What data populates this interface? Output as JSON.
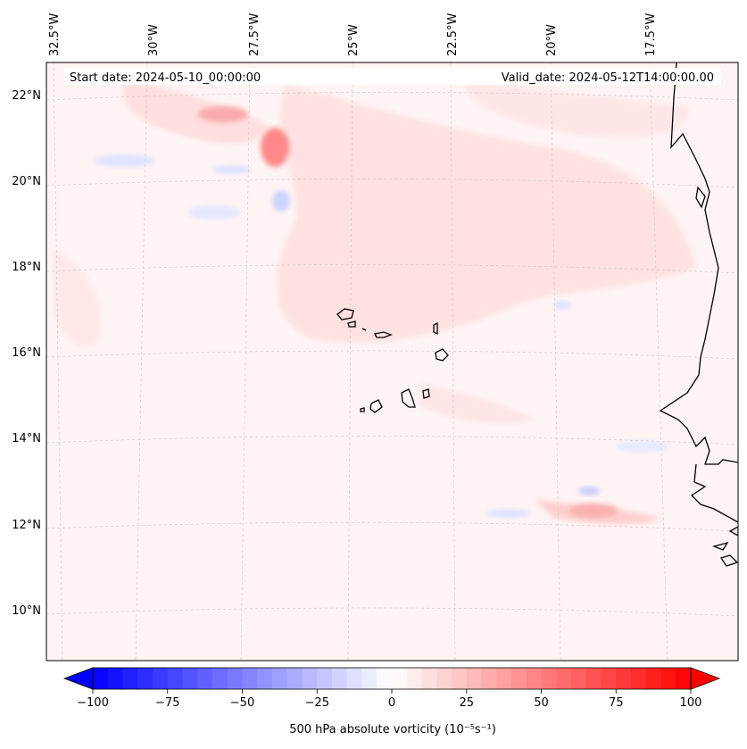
{
  "header": {
    "start_date": "Start date: 2024-05-10_00:00:00",
    "valid_date": "Valid_date: 2024-05-12T14:00:00.00"
  },
  "map": {
    "lon_labels": [
      "32.5°W",
      "30°W",
      "27.5°W",
      "25°W",
      "22.5°W",
      "20°W",
      "17.5°W"
    ],
    "lat_labels": [
      "22°N",
      "20°N",
      "18°N",
      "16°N",
      "14°N",
      "12°N",
      "10°N"
    ],
    "field_color_low": "#0000ff",
    "field_color_high": "#ff0000",
    "coast_color": "#000000"
  },
  "colorbar": {
    "ticks": [
      "−100",
      "−75",
      "−50",
      "−25",
      "0",
      "25",
      "50",
      "75",
      "100"
    ],
    "label": "500 hPa absolute vorticity (10⁻⁵s⁻¹)",
    "min": -100,
    "max": 100,
    "colors": [
      "#0000ff",
      "#ffffff",
      "#ff0000"
    ]
  }
}
